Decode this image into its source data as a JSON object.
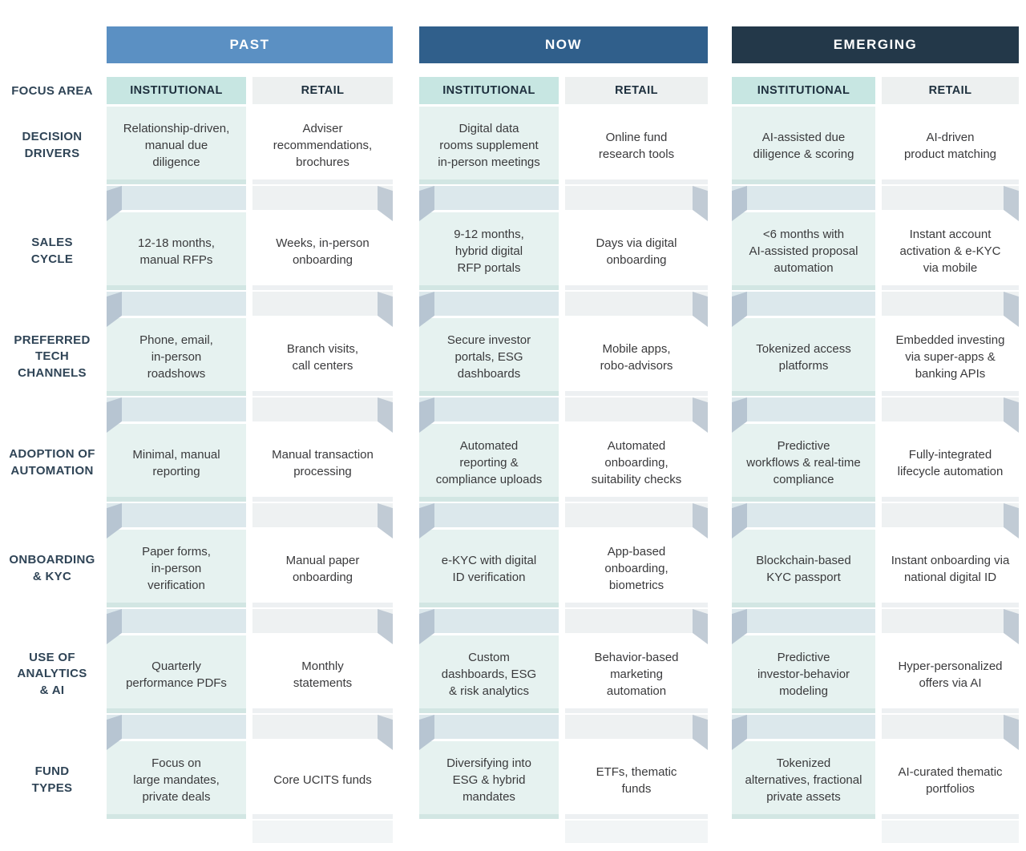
{
  "focus_area_label": "FOCUS AREA",
  "eras": [
    {
      "label": "PAST",
      "color": "#5b90c3"
    },
    {
      "label": "NOW",
      "color": "#305f8b"
    },
    {
      "label": "EMERGING",
      "color": "#233849"
    }
  ],
  "segments": [
    "INSTITUTIONAL",
    "RETAIL"
  ],
  "colors": {
    "institutional_header_bg": "#c7e6e2",
    "retail_header_bg": "#edf0f0",
    "institutional_cell_bg": "#e6f2f0",
    "retail_cell_bg": "#ffffff",
    "connector_band_institutional": "#dce8ec",
    "connector_band_retail": "#eef1f2",
    "connector_fold": "#b7c5d2",
    "label_text": "#2f4456"
  },
  "rows": [
    {
      "label": "DECISION\nDRIVERS",
      "cells": [
        "Relationship-driven,\nmanual due\ndiligence",
        "Adviser\nrecommendations,\nbrochures",
        "Digital data\nrooms supplement\nin-person meetings",
        "Online fund\nresearch tools",
        "AI-assisted due\ndiligence & scoring",
        "AI-driven\nproduct matching"
      ]
    },
    {
      "label": "SALES\nCYCLE",
      "cells": [
        "12-18 months,\nmanual RFPs",
        "Weeks, in-person\nonboarding",
        "9-12 months,\nhybrid digital\nRFP portals",
        "Days via digital\nonboarding",
        "<6 months with\nAI-assisted proposal\nautomation",
        "Instant account\nactivation & e-KYC\nvia mobile"
      ]
    },
    {
      "label": "PREFERRED\nTECH\nCHANNELS",
      "cells": [
        "Phone, email,\nin-person\nroadshows",
        "Branch visits,\ncall centers",
        "Secure investor\nportals, ESG\ndashboards",
        "Mobile apps,\nrobo-advisors",
        "Tokenized access\nplatforms",
        "Embedded investing\nvia super-apps &\nbanking APIs"
      ]
    },
    {
      "label": "ADOPTION OF\nAUTOMATION",
      "cells": [
        "Minimal, manual\nreporting",
        "Manual transaction\nprocessing",
        "Automated\nreporting &\ncompliance uploads",
        "Automated\nonboarding,\nsuitability checks",
        "Predictive\nworkflows & real-time\ncompliance",
        "Fully-integrated\nlifecycle automation"
      ]
    },
    {
      "label": "ONBOARDING\n& KYC",
      "cells": [
        "Paper forms,\nin-person\nverification",
        "Manual paper\nonboarding",
        "e-KYC with digital\nID verification",
        "App-based\nonboarding,\nbiometrics",
        "Blockchain-based\nKYC passport",
        "Instant onboarding via\nnational digital ID"
      ]
    },
    {
      "label": "USE OF\nANALYTICS\n& AI",
      "cells": [
        "Quarterly\nperformance PDFs",
        "Monthly\nstatements",
        "Custom\ndashboards, ESG\n& risk analytics",
        "Behavior-based\nmarketing\nautomation",
        "Predictive\ninvestor-behavior\nmodeling",
        "Hyper-personalized\noffers via AI"
      ]
    },
    {
      "label": "FUND\nTYPES",
      "cells": [
        "Focus on\nlarge mandates,\nprivate deals",
        "Core UCITS funds",
        "Diversifying into\nESG & hybrid\nmandates",
        "ETFs, thematic\nfunds",
        "Tokenized\nalternatives, fractional\nprivate assets",
        "AI-curated thematic\nportfolios"
      ]
    }
  ]
}
